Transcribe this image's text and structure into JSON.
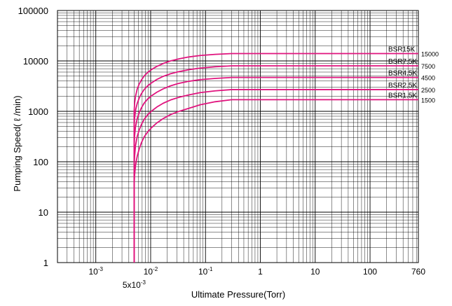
{
  "chart_data": {
    "type": "line",
    "xlabel": "Ultimate Pressure(Torr)",
    "ylabel": "Pumping Speed( ℓ /min)",
    "x_scale": "log",
    "y_scale": "log",
    "xlim": [
      0.0002,
      760
    ],
    "ylim": [
      1,
      100000
    ],
    "grid": true,
    "x_ticks": [
      {
        "value": 0.001,
        "base": "10",
        "exp": "-3"
      },
      {
        "value": 0.01,
        "base": "10",
        "exp": "-2"
      },
      {
        "value": 0.1,
        "base": "10",
        "exp": "-1"
      },
      {
        "value": 1,
        "label": "1"
      },
      {
        "value": 10,
        "label": "10"
      },
      {
        "value": 100,
        "label": "100"
      },
      {
        "value": 760,
        "label": "760"
      }
    ],
    "x_extra_tick": {
      "value": 0.005,
      "base": "5x10",
      "exp": "-3"
    },
    "y_ticks": [
      {
        "value": 1,
        "label": "1"
      },
      {
        "value": 10,
        "label": "10"
      },
      {
        "value": 100,
        "label": "100"
      },
      {
        "value": 1000,
        "label": "1000"
      },
      {
        "value": 10000,
        "label": "10000"
      },
      {
        "value": 100000,
        "label": "100000"
      }
    ],
    "series_color": "#e0147e",
    "series": [
      {
        "name": "BSR15K",
        "value_label": "15000",
        "plateau": 14000,
        "x": [
          0.005,
          0.005,
          0.0051,
          0.0053,
          0.0057,
          0.0062,
          0.0068,
          0.0076,
          0.0088,
          0.0105,
          0.013,
          0.017,
          0.023,
          0.033,
          0.05,
          0.08,
          0.15,
          0.3,
          1,
          10,
          100,
          760
        ],
        "y": [
          1,
          1000,
          1450,
          2000,
          2800,
          3500,
          4200,
          5000,
          5900,
          6800,
          7800,
          8900,
          10000,
          11000,
          12000,
          12800,
          13500,
          14000,
          14000,
          14000,
          14000,
          14000
        ]
      },
      {
        "name": "BSR7.5K",
        "value_label": "7500",
        "plateau": 8000,
        "x": [
          0.005,
          0.005,
          0.0051,
          0.0053,
          0.0057,
          0.0062,
          0.0068,
          0.0076,
          0.0088,
          0.0105,
          0.013,
          0.017,
          0.023,
          0.033,
          0.05,
          0.08,
          0.15,
          0.3,
          1,
          10,
          100,
          760
        ],
        "y": [
          1,
          500,
          750,
          1050,
          1450,
          1850,
          2250,
          2700,
          3200,
          3700,
          4300,
          4950,
          5550,
          6150,
          6700,
          7200,
          7650,
          8000,
          8000,
          8000,
          8000,
          8000
        ]
      },
      {
        "name": "BSR4.5K",
        "value_label": "4500",
        "plateau": 4700,
        "x": [
          0.005,
          0.005,
          0.0051,
          0.0053,
          0.0057,
          0.0062,
          0.0068,
          0.0076,
          0.0088,
          0.0105,
          0.013,
          0.017,
          0.023,
          0.033,
          0.05,
          0.08,
          0.15,
          0.3,
          1,
          10,
          100,
          760
        ],
        "y": [
          1,
          200,
          330,
          500,
          720,
          950,
          1180,
          1450,
          1750,
          2050,
          2400,
          2800,
          3200,
          3600,
          3950,
          4250,
          4500,
          4700,
          4700,
          4700,
          4700,
          4700
        ]
      },
      {
        "name": "BSR2.5K",
        "value_label": "2500",
        "plateau": 2700,
        "x": [
          0.005,
          0.005,
          0.0051,
          0.0053,
          0.0057,
          0.0062,
          0.0068,
          0.0076,
          0.0088,
          0.0105,
          0.013,
          0.017,
          0.023,
          0.033,
          0.05,
          0.08,
          0.15,
          0.3,
          1,
          10,
          100,
          760
        ],
        "y": [
          1,
          80,
          130,
          210,
          320,
          430,
          550,
          690,
          850,
          1020,
          1220,
          1450,
          1680,
          1900,
          2120,
          2350,
          2550,
          2700,
          2700,
          2700,
          2700,
          2700
        ]
      },
      {
        "name": "BSR1.5K",
        "value_label": "1500",
        "plateau": 1700,
        "x": [
          0.005,
          0.005,
          0.0051,
          0.0053,
          0.0057,
          0.0062,
          0.0068,
          0.0076,
          0.0088,
          0.0105,
          0.013,
          0.017,
          0.023,
          0.033,
          0.05,
          0.08,
          0.15,
          0.3,
          1,
          10,
          100,
          760
        ],
        "y": [
          1,
          35,
          55,
          85,
          130,
          180,
          240,
          310,
          390,
          480,
          590,
          720,
          860,
          1000,
          1150,
          1350,
          1550,
          1700,
          1700,
          1700,
          1700,
          1700
        ]
      }
    ]
  }
}
